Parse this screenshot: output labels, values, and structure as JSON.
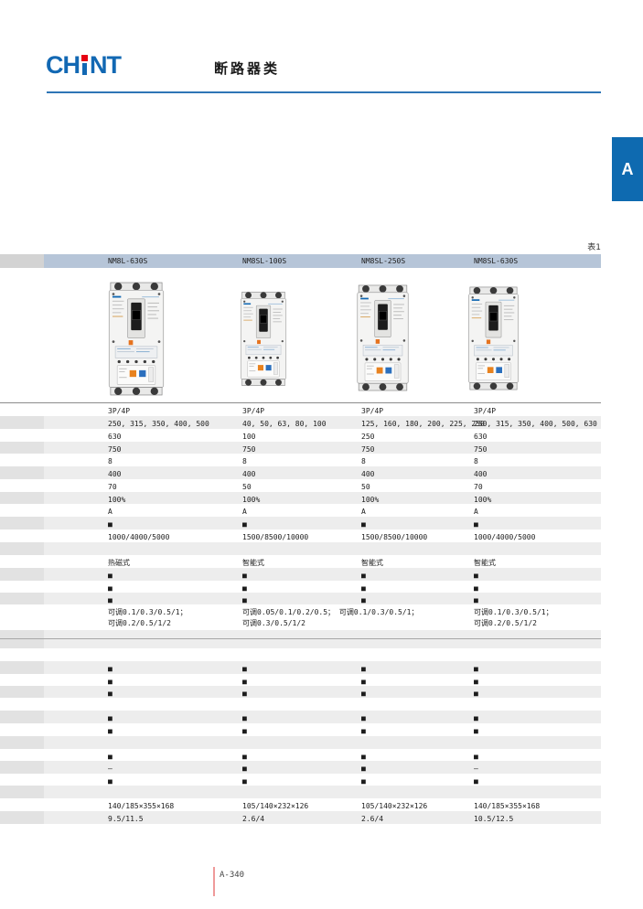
{
  "brand": {
    "part1": "CH",
    "part2": "NT"
  },
  "page_header": {
    "title": "断路器类"
  },
  "side_tab": {
    "label": "A"
  },
  "table": {
    "caption": "表1",
    "models": [
      "NM8L-630S",
      "NM8SL-100S",
      "NM8SL-250S",
      "NM8SL-630S"
    ],
    "rows": [
      {
        "shade": "w",
        "cells": [
          "3P/4P",
          "3P/4P",
          "3P/4P",
          "3P/4P"
        ]
      },
      {
        "shade": "g",
        "cells": [
          "250, 315, 350, 400, 500",
          "40, 50, 63, 80, 100",
          "125, 160, 180, 200, 225, 250",
          "250, 315, 350, 400, 500, 630"
        ]
      },
      {
        "shade": "w",
        "cells": [
          "630",
          "100",
          "250",
          "630"
        ]
      },
      {
        "shade": "g",
        "h": 13,
        "cells": [
          "750",
          "750",
          "750",
          "750"
        ]
      },
      {
        "shade": "w",
        "cells": [
          "8",
          "8",
          "8",
          "8"
        ]
      },
      {
        "shade": "g",
        "cells": [
          "400",
          "400",
          "400",
          "400"
        ]
      },
      {
        "shade": "w",
        "cells": [
          "70",
          "50",
          "50",
          "70"
        ]
      },
      {
        "shade": "g",
        "h": 13,
        "cells": [
          "100%",
          "100%",
          "100%",
          "100%"
        ]
      },
      {
        "shade": "w",
        "cells": [
          "A",
          "A",
          "A",
          "A"
        ]
      },
      {
        "shade": "g",
        "cells": [
          "■",
          "■",
          "■",
          "■"
        ]
      },
      {
        "shade": "w",
        "cells": [
          "1000/4000/5000",
          "1500/8500/10000",
          "1500/8500/10000",
          "1000/4000/5000"
        ]
      },
      {
        "shade": "g",
        "cells": [
          "",
          "",
          "",
          ""
        ]
      },
      {
        "shade": "w",
        "cells": [
          "热磁式",
          "智能式",
          "智能式",
          "智能式"
        ]
      },
      {
        "shade": "g",
        "cells": [
          "■",
          "■",
          "■",
          "■"
        ]
      },
      {
        "shade": "w",
        "h": 13,
        "cells": [
          "■",
          "■",
          "■",
          "■"
        ]
      },
      {
        "shade": "g",
        "h": 13,
        "cells": [
          "■",
          "■",
          "■",
          "■"
        ]
      },
      {
        "shade": "w",
        "h": 28,
        "cells": [
          "可调0.1/0.3/0.5/1；\n可调0.2/0.5/1/2",
          "可调0.05/0.1/0.2/0.5； 可调0.1/0.3/0.5/1；\n可调0.3/0.5/1/2",
          "",
          "可调0.1/0.3/0.5/1；\n可调0.2/0.5/1/2"
        ]
      },
      {
        "shade": "g",
        "h": 9,
        "cells": [
          "",
          "",
          "",
          ""
        ]
      },
      {
        "shade": "g",
        "h": 10,
        "line_above": true,
        "cells": [
          "",
          "",
          "",
          ""
        ]
      },
      {
        "shade": "w",
        "cells": [
          "",
          "",
          "",
          ""
        ]
      },
      {
        "shade": "g",
        "cells": [
          "■",
          "■",
          "■",
          "■"
        ]
      },
      {
        "shade": "w",
        "h": 13,
        "cells": [
          "■",
          "■",
          "■",
          "■"
        ]
      },
      {
        "shade": "g",
        "h": 13,
        "cells": [
          "■",
          "■",
          "■",
          "■"
        ]
      },
      {
        "shade": "w",
        "cells": [
          "",
          "",
          "",
          ""
        ]
      },
      {
        "shade": "g",
        "cells": [
          "■",
          "■",
          "■",
          "■"
        ]
      },
      {
        "shade": "w",
        "cells": [
          "■",
          "■",
          "■",
          "■"
        ]
      },
      {
        "shade": "g",
        "cells": [
          "",
          "",
          "",
          ""
        ]
      },
      {
        "shade": "w",
        "h": 13,
        "cells": [
          "■",
          "■",
          "■",
          "■"
        ]
      },
      {
        "shade": "g",
        "cells": [
          "—",
          "■",
          "■",
          "—"
        ]
      },
      {
        "shade": "w",
        "h": 13,
        "cells": [
          "■",
          "■",
          "■",
          "■"
        ]
      },
      {
        "shade": "g",
        "cells": [
          "",
          "",
          "",
          ""
        ]
      },
      {
        "shade": "w",
        "cells": [
          "140/185×355×168",
          "105/140×232×126",
          "105/140×232×126",
          "140/185×355×168"
        ]
      },
      {
        "shade": "g",
        "cells": [
          "9.5/11.5",
          "2.6/4",
          "2.6/4",
          "10.5/12.5"
        ]
      }
    ]
  },
  "footer": {
    "page_number": "A-340"
  },
  "colors": {
    "logo_blue": "#1268b3",
    "logo_red": "#e60012",
    "band_blue": "#b6c5d8",
    "tab_blue": "#0e6ab0",
    "stripe_gray": "#ededed",
    "rule_blue": "#2e75b6",
    "footer_red": "#ef9a9a"
  }
}
